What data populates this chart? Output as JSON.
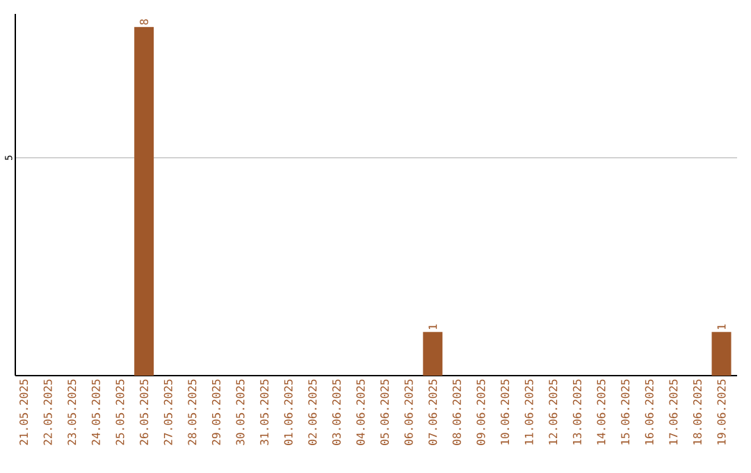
{
  "chart_data": {
    "type": "bar",
    "categories": [
      "21.05.2025",
      "22.05.2025",
      "23.05.2025",
      "24.05.2025",
      "25.05.2025",
      "26.05.2025",
      "27.05.2025",
      "28.05.2025",
      "29.05.2025",
      "30.05.2025",
      "31.05.2025",
      "01.06.2025",
      "02.06.2025",
      "03.06.2025",
      "04.06.2025",
      "05.06.2025",
      "06.06.2025",
      "07.06.2025",
      "08.06.2025",
      "09.06.2025",
      "10.06.2025",
      "11.06.2025",
      "12.06.2025",
      "13.06.2025",
      "14.06.2025",
      "15.06.2025",
      "16.06.2025",
      "17.06.2025",
      "18.06.2025",
      "19.06.2025"
    ],
    "values": [
      0,
      0,
      0,
      0,
      0,
      8,
      0,
      0,
      0,
      0,
      0,
      0,
      0,
      0,
      0,
      0,
      0,
      1,
      0,
      0,
      0,
      0,
      0,
      0,
      0,
      0,
      0,
      0,
      0,
      1
    ],
    "value_labels": [
      null,
      null,
      null,
      null,
      null,
      "8",
      null,
      null,
      null,
      null,
      null,
      null,
      null,
      null,
      null,
      null,
      null,
      "1",
      null,
      null,
      null,
      null,
      null,
      null,
      null,
      null,
      null,
      null,
      null,
      "1"
    ],
    "color": "#a0582a",
    "ylim": [
      0,
      8.3
    ],
    "yticks": [
      5
    ],
    "grid": "y"
  }
}
